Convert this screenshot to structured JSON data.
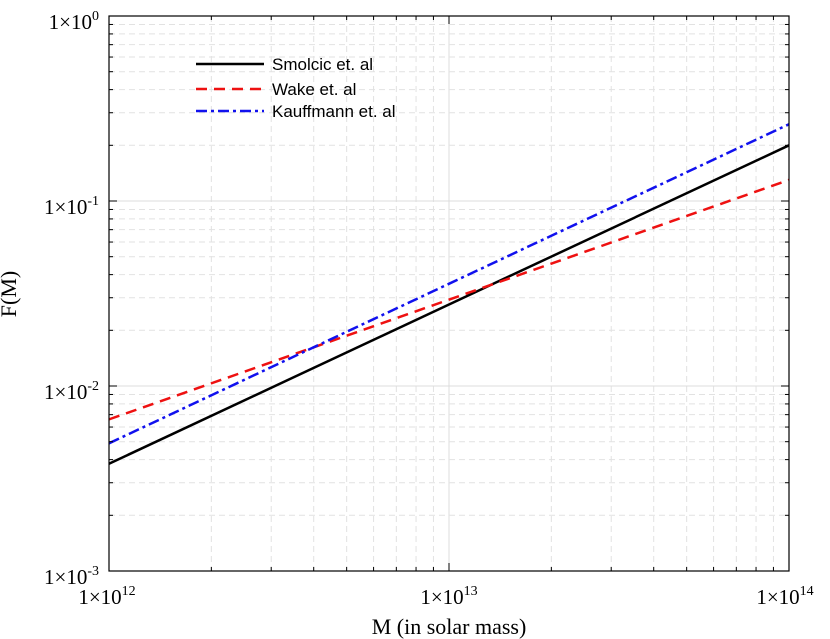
{
  "chart_data": {
    "type": "line",
    "scale": {
      "x": "log",
      "y": "log"
    },
    "xlabel": "M (in solar mass)",
    "ylabel": "F(M)",
    "xlim": [
      1000000000000.0,
      100000000000000.0
    ],
    "ylim": [
      0.001,
      1
    ],
    "grid": true,
    "legend_position": "top-left",
    "x_ticks": [
      {
        "value": 1000000000000.0,
        "base": "1×10",
        "exp": "12"
      },
      {
        "value": 10000000000000.0,
        "base": "1×10",
        "exp": "13"
      },
      {
        "value": 100000000000000.0,
        "base": "1×10",
        "exp": "14"
      }
    ],
    "y_ticks": [
      {
        "value": 1,
        "base": "1×10",
        "exp": "0"
      },
      {
        "value": 0.1,
        "base": "1×10",
        "exp": "-1"
      },
      {
        "value": 0.01,
        "base": "1×10",
        "exp": "-2"
      },
      {
        "value": 0.001,
        "base": "1×10",
        "exp": "-3"
      }
    ],
    "series": [
      {
        "name": "Smolcic et. al",
        "style": "solid",
        "color": "#000000",
        "x": [
          1000000000000.0,
          100000000000000.0
        ],
        "y": [
          0.0038,
          0.2
        ]
      },
      {
        "name": "Wake et. al",
        "style": "dashed",
        "color": "#ee1111",
        "x": [
          1000000000000.0,
          100000000000000.0
        ],
        "y": [
          0.0066,
          0.13
        ]
      },
      {
        "name": "Kauffmann et. al",
        "style": "dashdot",
        "color": "#1111ee",
        "x": [
          1000000000000.0,
          100000000000000.0
        ],
        "y": [
          0.0049,
          0.26
        ]
      }
    ]
  }
}
